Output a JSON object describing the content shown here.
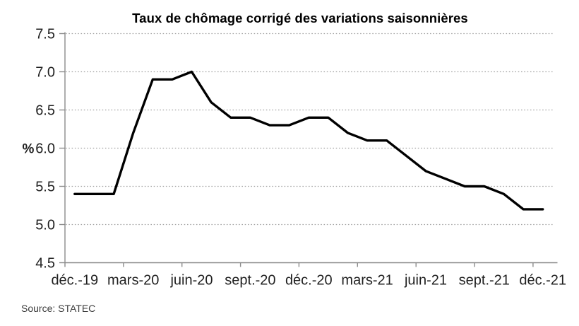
{
  "chart_data": {
    "type": "line",
    "title": "Taux de chômage corrigé des variations saisonnières",
    "ylabel": "%",
    "xlabel": "",
    "x": [
      "déc.-19",
      "janv.-20",
      "févr.-20",
      "mars-20",
      "avr.-20",
      "mai-20",
      "juin-20",
      "juil.-20",
      "août-20",
      "sept.-20",
      "oct.-20",
      "nov.-20",
      "déc.-20",
      "janv.-21",
      "févr.-21",
      "mars-21",
      "avr.-21",
      "mai-21",
      "juin-21",
      "juil.-21",
      "août-21",
      "sept.-21",
      "oct.-21",
      "nov.-21",
      "déc.-21"
    ],
    "values": [
      5.4,
      5.4,
      5.4,
      6.2,
      6.9,
      6.9,
      7.0,
      6.6,
      6.4,
      6.4,
      6.3,
      6.3,
      6.4,
      6.4,
      6.2,
      6.1,
      6.1,
      5.9,
      5.7,
      5.6,
      5.5,
      5.5,
      5.4,
      5.2,
      5.2
    ],
    "x_tick_labels": [
      "déc.-19",
      "mars-20",
      "juin-20",
      "sept.-20",
      "déc.-20",
      "mars-21",
      "juin-21",
      "sept.-21",
      "déc.-21"
    ],
    "x_tick_interval": 3,
    "ylim": [
      4.5,
      7.5
    ],
    "yticks": [
      4.5,
      5.0,
      5.5,
      6.0,
      6.5,
      7.0,
      7.5
    ],
    "ytick_format_decimals": 1,
    "grid": "horizontal-dotted",
    "legend_position": "none",
    "line_color": "#000000",
    "line_width": 3.4,
    "gridline_color": "#a3a3a3",
    "axis_color": "#8c8c8c",
    "label_color": "#1f1f1f"
  },
  "source_note": "Source: STATEC"
}
